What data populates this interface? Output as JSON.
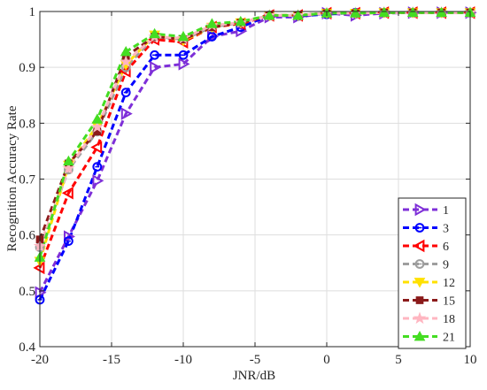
{
  "chart_data": {
    "type": "line",
    "xlabel": "JNR/dB",
    "ylabel": "Recognition Accuracy Rate",
    "xlim": [
      -20,
      10
    ],
    "ylim": [
      0.4,
      1.0
    ],
    "xticks": [
      "-20",
      "-15",
      "-10",
      "-5",
      "0",
      "5",
      "10"
    ],
    "yticks": [
      "0.4",
      "0.5",
      "0.6",
      "0.7",
      "0.8",
      "0.9",
      "1"
    ],
    "grid": true,
    "legend_position": "bottom-right",
    "x": [
      -20,
      -18,
      -16,
      -14,
      -12,
      -10,
      -8,
      -6,
      -4,
      -2,
      0,
      2,
      4,
      6,
      8,
      10
    ],
    "series": [
      {
        "name": "1",
        "color": "#7E2FD8",
        "marker": "triangle-right",
        "values": [
          0.497,
          0.597,
          0.697,
          0.817,
          0.9,
          0.906,
          0.955,
          0.965,
          0.99,
          0.99,
          0.997,
          0.993,
          0.997,
          0.998,
          0.998,
          0.998
        ]
      },
      {
        "name": "3",
        "color": "#0000FF",
        "marker": "circle",
        "values": [
          0.484,
          0.589,
          0.722,
          0.855,
          0.922,
          0.922,
          0.955,
          0.972,
          0.993,
          0.992,
          0.995,
          0.998,
          0.998,
          0.998,
          0.998,
          0.998
        ]
      },
      {
        "name": "6",
        "color": "#FF0000",
        "marker": "triangle-left",
        "values": [
          0.541,
          0.675,
          0.757,
          0.893,
          0.95,
          0.945,
          0.972,
          0.978,
          0.993,
          0.993,
          0.997,
          0.997,
          0.998,
          0.998,
          0.998,
          0.998
        ]
      },
      {
        "name": "9",
        "color": "#9E9E9E",
        "marker": "circle",
        "values": [
          0.578,
          0.717,
          0.785,
          0.9,
          0.955,
          0.95,
          0.972,
          0.98,
          0.993,
          0.993,
          0.997,
          0.997,
          0.998,
          0.998,
          0.998,
          0.998
        ]
      },
      {
        "name": "12",
        "color": "#FFE100",
        "marker": "triangle-down",
        "values": [
          0.553,
          0.725,
          0.795,
          0.905,
          0.958,
          0.948,
          0.972,
          0.98,
          0.993,
          0.993,
          0.997,
          0.997,
          0.998,
          0.998,
          0.998,
          0.998
        ]
      },
      {
        "name": "15",
        "color": "#8B1A1A",
        "marker": "square",
        "values": [
          0.592,
          0.728,
          0.785,
          0.92,
          0.955,
          0.95,
          0.972,
          0.98,
          0.993,
          0.993,
          0.997,
          0.997,
          0.998,
          0.998,
          0.998,
          0.998
        ]
      },
      {
        "name": "18",
        "color": "#FFB6C1",
        "marker": "star",
        "values": [
          0.58,
          0.719,
          0.793,
          0.91,
          0.955,
          0.952,
          0.975,
          0.98,
          0.993,
          0.993,
          0.997,
          0.997,
          0.998,
          0.998,
          0.998,
          0.998
        ]
      },
      {
        "name": "21",
        "color": "#44DD22",
        "marker": "triangle-up",
        "values": [
          0.56,
          0.732,
          0.807,
          0.928,
          0.96,
          0.955,
          0.978,
          0.982,
          0.993,
          0.993,
          0.997,
          0.997,
          0.998,
          0.998,
          0.998,
          0.998
        ]
      }
    ]
  }
}
